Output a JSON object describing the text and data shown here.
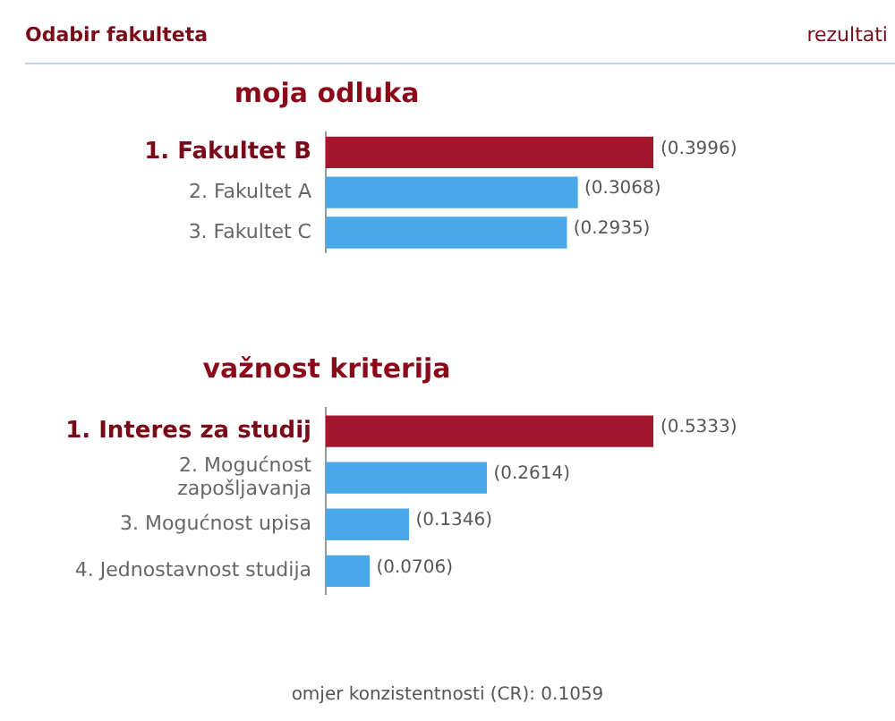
{
  "chart_data": [
    {
      "type": "bar",
      "orientation": "horizontal",
      "title": "moja odluka",
      "annotations": [
        "Odabir fakulteta",
        "rezultati"
      ],
      "categories": [
        "1. Fakultet B",
        "2. Fakultet A",
        "3. Fakultet C"
      ],
      "values": [
        0.3996,
        0.3068,
        0.2935
      ],
      "value_labels": [
        "(0.3996)",
        "(0.3068)",
        "(0.2935)"
      ],
      "colors": [
        "#a3162d",
        "#4aa8ea",
        "#4aa8ea"
      ],
      "tick_labels": "y"
    },
    {
      "type": "bar",
      "orientation": "horizontal",
      "title": "važnost kriterija",
      "annotations": [
        "omjer konzistentnosti (CR): 0.1059"
      ],
      "categories": [
        "1. Interes za studij",
        "2. Mogućnost zapošljavanja",
        "3. Mogućnost upisa",
        "4. Jednostavnost studija"
      ],
      "values": [
        0.5333,
        0.2614,
        0.1346,
        0.0706
      ],
      "value_labels": [
        "(0.5333)",
        "(0.2614)",
        "(0.1346)",
        "(0.0706)"
      ],
      "colors": [
        "#a3162d",
        "#4aa8ea",
        "#4aa8ea",
        "#4aa8ea"
      ],
      "tick_labels": "y"
    }
  ]
}
